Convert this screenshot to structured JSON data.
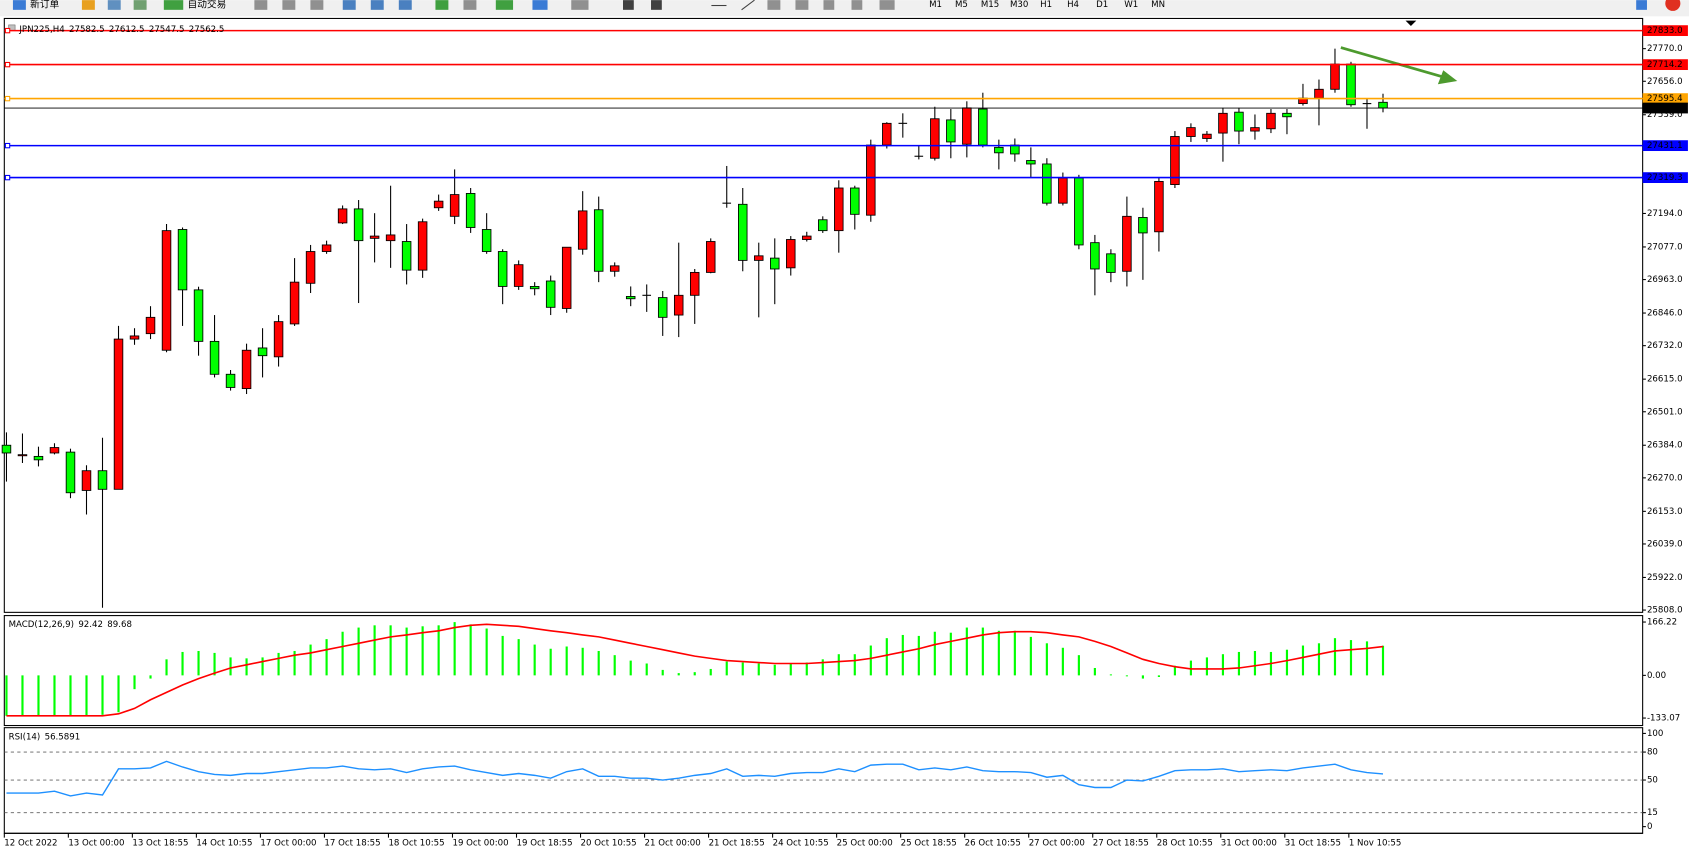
{
  "toolbar": {
    "buttons": [
      "新订单",
      "自动交易"
    ],
    "timeframes": [
      "M1",
      "M5",
      "M15",
      "M30",
      "H1",
      "H4",
      "D1",
      "W1",
      "MN"
    ]
  },
  "chart_data": [
    {
      "type": "candlestick",
      "title": "JPN225,H4",
      "categories": [
        "12 Oct 2022",
        null,
        null,
        null,
        "13 Oct 00:00",
        null,
        null,
        null,
        "13 Oct 18:55",
        null,
        null,
        null,
        "14 Oct 10:55",
        null,
        null,
        null,
        "17 Oct 00:00",
        null,
        null,
        null,
        "17 Oct 18:55",
        null,
        null,
        null,
        "18 Oct 10:55",
        null,
        null,
        null,
        "19 Oct 00:00",
        null,
        null,
        null,
        "19 Oct 18:55",
        null,
        null,
        null,
        "20 Oct 10:55",
        null,
        null,
        null,
        "21 Oct 00:00",
        null,
        null,
        null,
        "21 Oct 18:55",
        null,
        null,
        null,
        "24 Oct 10:55",
        null,
        null,
        null,
        "25 Oct 00:00",
        null,
        null,
        null,
        "25 Oct 18:55",
        null,
        null,
        null,
        "26 Oct 10:55",
        null,
        null,
        null,
        "27 Oct 00:00",
        null,
        null,
        null,
        "27 Oct 18:55",
        null,
        null,
        null,
        "28 Oct 10:55",
        null,
        null,
        null,
        "31 Oct 00:00",
        null,
        null,
        null,
        "31 Oct 18:55",
        null,
        null,
        null,
        "1 Nov 10:55",
        null,
        null
      ],
      "ohlc": [
        [
          26384,
          26429,
          26257,
          26357
        ],
        [
          26349,
          26425,
          26322,
          26351
        ],
        [
          26345,
          26379,
          26310,
          26333
        ],
        [
          26357,
          26391,
          26352,
          26376
        ],
        [
          26360,
          26372,
          26199,
          26218
        ],
        [
          26226,
          26314,
          26142,
          26295
        ],
        [
          26295,
          26410,
          25816,
          26230
        ],
        [
          26230,
          26801,
          26230,
          26755
        ],
        [
          26755,
          26793,
          26735,
          26766
        ],
        [
          26774,
          26870,
          26755,
          26831
        ],
        [
          26716,
          27157,
          26709,
          27134
        ],
        [
          27138,
          27145,
          26801,
          26927
        ],
        [
          26927,
          26938,
          26697,
          26747
        ],
        [
          26747,
          26839,
          26621,
          26632
        ],
        [
          26632,
          26647,
          26575,
          26586
        ],
        [
          26582,
          26739,
          26563,
          26716
        ],
        [
          26724,
          26793,
          26621,
          26697
        ],
        [
          26693,
          26839,
          26659,
          26816
        ],
        [
          26808,
          27038,
          26801,
          26954
        ],
        [
          26950,
          27084,
          26916,
          27061
        ],
        [
          27061,
          27099,
          27053,
          27084
        ],
        [
          27161,
          27222,
          27157,
          27210
        ],
        [
          27210,
          27241,
          26881,
          27099
        ],
        [
          27107,
          27195,
          27023,
          27115
        ],
        [
          27099,
          27291,
          27004,
          27119
        ],
        [
          27096,
          27157,
          26946,
          26996
        ],
        [
          26996,
          27176,
          26969,
          27165
        ],
        [
          27214,
          27260,
          27203,
          27237
        ],
        [
          27184,
          27348,
          27157,
          27260
        ],
        [
          27264,
          27283,
          27126,
          27145
        ],
        [
          27138,
          27195,
          27053,
          27061
        ],
        [
          27061,
          27069,
          26877,
          26939
        ],
        [
          26939,
          27030,
          26927,
          27015
        ],
        [
          26939,
          26954,
          26908,
          26931
        ],
        [
          26958,
          26977,
          26839,
          26866
        ],
        [
          26862,
          27076,
          26847,
          27076
        ],
        [
          27069,
          27272,
          27050,
          27203
        ],
        [
          27207,
          27253,
          26954,
          26992
        ],
        [
          26992,
          27023,
          26973,
          27011
        ],
        [
          26904,
          26939,
          26870,
          26896
        ],
        [
          26908,
          26946,
          26850,
          26908
        ],
        [
          26900,
          26923,
          26766,
          26831
        ],
        [
          26839,
          27092,
          26762,
          26908
        ],
        [
          26908,
          27000,
          26808,
          26988
        ],
        [
          26988,
          27107,
          26985,
          27096
        ],
        [
          27230,
          27360,
          27214,
          27230
        ],
        [
          27226,
          27283,
          26992,
          27030
        ],
        [
          27030,
          27092,
          26831,
          27046
        ],
        [
          27038,
          27107,
          26877,
          27000
        ],
        [
          27004,
          27115,
          26977,
          27103
        ],
        [
          27103,
          27130,
          27096,
          27115
        ],
        [
          27172,
          27184,
          27126,
          27134
        ],
        [
          27134,
          27310,
          27057,
          27283
        ],
        [
          27283,
          27291,
          27138,
          27191
        ],
        [
          27188,
          27452,
          27165,
          27433
        ],
        [
          27433,
          27513,
          27421,
          27509
        ],
        [
          27509,
          27544,
          27459,
          27509
        ],
        [
          27394,
          27433,
          27383,
          27394
        ],
        [
          27387,
          27567,
          27379,
          27525
        ],
        [
          27521,
          27559,
          27387,
          27444
        ],
        [
          27436,
          27586,
          27390,
          27563
        ],
        [
          27559,
          27616,
          27425,
          27433
        ],
        [
          27425,
          27452,
          27348,
          27406
        ],
        [
          27433,
          27456,
          27375,
          27402
        ],
        [
          27379,
          27425,
          27318,
          27367
        ],
        [
          27367,
          27387,
          27222,
          27230
        ],
        [
          27230,
          27337,
          27222,
          27318
        ],
        [
          27318,
          27329,
          27069,
          27084
        ],
        [
          27092,
          27119,
          26908,
          27000
        ],
        [
          27053,
          27069,
          26954,
          26988
        ],
        [
          26992,
          27253,
          26939,
          27184
        ],
        [
          27180,
          27214,
          26962,
          27126
        ],
        [
          27130,
          27318,
          27061,
          27306
        ],
        [
          27295,
          27482,
          27283,
          27463
        ],
        [
          27463,
          27509,
          27444,
          27494
        ],
        [
          27456,
          27482,
          27444,
          27471
        ],
        [
          27475,
          27563,
          27375,
          27544
        ],
        [
          27548,
          27563,
          27436,
          27482
        ],
        [
          27482,
          27540,
          27452,
          27494
        ],
        [
          27490,
          27559,
          27475,
          27544
        ],
        [
          27544,
          27559,
          27471,
          27532
        ],
        [
          27578,
          27647,
          27571,
          27597
        ],
        [
          27597,
          27662,
          27502,
          27628
        ],
        [
          27628,
          27770,
          27616,
          27716
        ],
        [
          27716,
          27724,
          27567,
          27574
        ],
        [
          27578,
          27597,
          27490,
          27578
        ],
        [
          27582.5,
          27612.5,
          27547.5,
          27562.5
        ]
      ],
      "up_color": "#ff0000",
      "down_color": "#00ff00",
      "current_color": "#000000",
      "ylim": [
        25800,
        27868
      ],
      "yticks": [
        {
          "value": 27770,
          "label": "27770.0"
        },
        {
          "value": 27656,
          "label": "27656.0"
        },
        {
          "value": 27539,
          "label": "27539.0"
        },
        {
          "value": 27194,
          "label": "27194.0"
        },
        {
          "value": 27077,
          "label": "27077.0"
        },
        {
          "value": 26963,
          "label": "26963.0"
        },
        {
          "value": 26846,
          "label": "26846.0"
        },
        {
          "value": 26732,
          "label": "26732.0"
        },
        {
          "value": 26615,
          "label": "26615.0"
        },
        {
          "value": 26501,
          "label": "26501.0"
        },
        {
          "value": 26384,
          "label": "26384.0"
        },
        {
          "value": 26270,
          "label": "26270.0"
        },
        {
          "value": 26153,
          "label": "26153.0"
        },
        {
          "value": 26039,
          "label": "26039.0"
        },
        {
          "value": 25922,
          "label": "25922.0"
        },
        {
          "value": 25808,
          "label": "25808.0"
        }
      ],
      "levels": [
        {
          "value": 27833,
          "label": "27833.0",
          "color": "#ff0000"
        },
        {
          "value": 27714.2,
          "label": "27714.2",
          "color": "#ff0000"
        },
        {
          "value": 27595.4,
          "label": "27595.4",
          "color": "#ffa500"
        },
        {
          "value": 27431.1,
          "label": "27431.1",
          "color": "#0000ff"
        },
        {
          "value": 27319.3,
          "label": "27319.3",
          "color": "#0000ff"
        }
      ]
    },
    {
      "type": "macd",
      "title": "MACD(12,26,9)",
      "histogram": {
        "color": "#00ff00",
        "values": [
          -126,
          -126,
          -126,
          -126,
          -126,
          -126,
          -123,
          -115,
          -43,
          -10,
          50,
          73,
          76,
          70,
          56,
          53,
          56,
          70,
          76,
          96,
          113,
          136,
          149,
          156,
          156,
          149,
          153,
          156,
          166,
          159,
          146,
          123,
          113,
          96,
          83,
          90,
          86,
          76,
          63,
          46,
          37,
          17,
          7,
          10,
          20,
          43,
          40,
          37,
          33,
          37,
          40,
          50,
          66,
          66,
          93,
          116,
          126,
          123,
          136,
          133,
          149,
          149,
          139,
          139,
          120,
          100,
          86,
          63,
          23,
          3,
          -3,
          -10,
          -5,
          30,
          46,
          56,
          66,
          73,
          76,
          73,
          80,
          93,
          100,
          116,
          110,
          106,
          92.42
        ]
      },
      "signal": {
        "color": "#ff0000",
        "values": [
          -126,
          -126,
          -126,
          -126,
          -126,
          -126,
          -126,
          -120,
          -103,
          -76,
          -53,
          -30,
          -10,
          7,
          23,
          33,
          43,
          53,
          63,
          70,
          80,
          90,
          100,
          110,
          120,
          126,
          133,
          139,
          149,
          156,
          159,
          156,
          153,
          146,
          139,
          133,
          126,
          120,
          110,
          100,
          90,
          80,
          70,
          60,
          53,
          46,
          43,
          40,
          37,
          37,
          37,
          40,
          43,
          46,
          53,
          63,
          73,
          83,
          96,
          106,
          116,
          126,
          133,
          136,
          136,
          133,
          126,
          120,
          106,
          90,
          70,
          50,
          37,
          27,
          20,
          20,
          20,
          23,
          30,
          37,
          46,
          56,
          66,
          76,
          80,
          84,
          89.68
        ]
      },
      "ylim": [
        -153,
        183
      ],
      "yticks": [
        166.22,
        {
          "value": 0,
          "label": "0.00"
        },
        -133.07
      ]
    },
    {
      "type": "line",
      "title": "RSI(14)",
      "color": "#1e90ff",
      "values": [
        36,
        36,
        36,
        38,
        33,
        36,
        34,
        62,
        62,
        63,
        70,
        64,
        59,
        56,
        55,
        57,
        57,
        59,
        61,
        63,
        63,
        65,
        62,
        61,
        62,
        58,
        62,
        64,
        65,
        61,
        58,
        55,
        57,
        55,
        52,
        59,
        62,
        54,
        54,
        52,
        52,
        50,
        52,
        55,
        57,
        62,
        54,
        55,
        54,
        57,
        58,
        58,
        62,
        59,
        66,
        67,
        67,
        61,
        63,
        61,
        64,
        60,
        59,
        59,
        58,
        53,
        55,
        45,
        42,
        42,
        50,
        49,
        54,
        60,
        61,
        61,
        62,
        59,
        60,
        61,
        60,
        63,
        65,
        67,
        61,
        58,
        56.5891
      ],
      "ylim": [
        -6,
        105
      ],
      "yticks": [
        0,
        15,
        50,
        80,
        100
      ],
      "levels": [
        15,
        50,
        80
      ]
    }
  ]
}
